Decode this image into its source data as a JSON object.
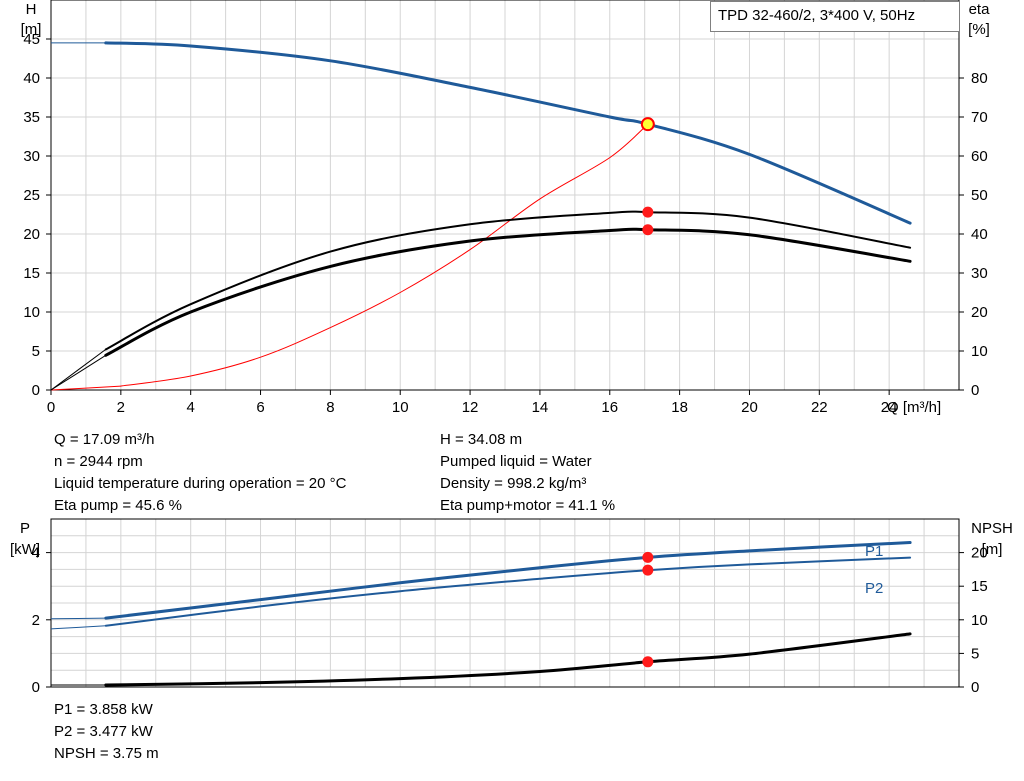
{
  "legend": "TPD 32-460/2, 3*400 V, 50Hz",
  "chart_data": [
    {
      "type": "line",
      "name": "head-efficiency",
      "x_label": "Q [m³/h]",
      "y_left_label": [
        "H",
        "[m]"
      ],
      "y_right_label": [
        "eta",
        "[%]"
      ],
      "x_range": [
        0,
        26
      ],
      "y_left_range": [
        0,
        50
      ],
      "y_right_range": [
        0,
        100
      ],
      "x_ticks": [
        "0",
        "2",
        "4",
        "6",
        "8",
        "10",
        "12",
        "14",
        "16",
        "18",
        "20",
        "22",
        "24"
      ],
      "y_left_ticks": [
        "0",
        "5",
        "10",
        "15",
        "20",
        "25",
        "30",
        "35",
        "40",
        "45"
      ],
      "y_right_ticks": [
        "0",
        "10",
        "20",
        "30",
        "40",
        "50",
        "60",
        "70",
        "80"
      ],
      "grid": true,
      "series": [
        {
          "id": "H",
          "axis": "left",
          "color": "#1f5a99",
          "x": [
            0,
            1.57,
            4,
            8,
            12,
            16,
            17.09,
            20,
            24.6
          ],
          "y": [
            44.5,
            44.5,
            44.1,
            42.2,
            38.8,
            35.0,
            34.08,
            30.2,
            21.4
          ]
        },
        {
          "id": "eta_pump",
          "axis": "right",
          "color": "#000000",
          "x": [
            0,
            1.57,
            4,
            8,
            12,
            16,
            17.09,
            20,
            24.6
          ],
          "y": [
            0,
            10.4,
            22,
            35.5,
            42.5,
            45.4,
            45.6,
            44.2,
            36.5
          ]
        },
        {
          "id": "eta_pump_motor",
          "axis": "right",
          "color": "#000000",
          "x": [
            0,
            1.57,
            4,
            8,
            12,
            16,
            17.09,
            20,
            24.6
          ],
          "y": [
            0,
            8.9,
            20,
            31.7,
            38.2,
            40.9,
            41.1,
            39.8,
            33.0
          ]
        },
        {
          "id": "system_curve",
          "axis": "left",
          "color": "#ff0000",
          "x": [
            0,
            2,
            4,
            6,
            8,
            10,
            12,
            14,
            16,
            17.09
          ],
          "y": [
            0,
            0.5,
            1.8,
            4.2,
            8,
            12.5,
            18,
            24.5,
            29.8,
            34.08
          ]
        }
      ],
      "operating_point": {
        "x": 17.09,
        "H": 34.08,
        "eta_pump": 45.6,
        "eta_pump_motor": 41.1
      }
    },
    {
      "type": "line",
      "name": "power-npsh",
      "y_left_label": [
        "P",
        "[kW]"
      ],
      "y_right_label": [
        "NPSH",
        "[m]"
      ],
      "x_range": [
        0,
        26
      ],
      "y_left_range": [
        0,
        5
      ],
      "y_right_range": [
        0,
        25
      ],
      "y_left_ticks": [
        "0",
        "2",
        "4"
      ],
      "y_right_ticks": [
        "0",
        "5",
        "10",
        "15",
        "20"
      ],
      "grid": true,
      "series": [
        {
          "id": "P1",
          "name": "P1",
          "axis": "left",
          "color": "#1f5a99",
          "x": [
            0,
            1.57,
            6,
            10,
            14,
            17.09,
            20,
            24.6
          ],
          "y": [
            2.03,
            2.05,
            2.6,
            3.1,
            3.55,
            3.858,
            4.05,
            4.3
          ]
        },
        {
          "id": "P2",
          "name": "P2",
          "axis": "left",
          "color": "#1f5a99",
          "x": [
            0,
            1.57,
            6,
            10,
            14,
            17.09,
            20,
            24.6
          ],
          "y": [
            1.73,
            1.82,
            2.4,
            2.85,
            3.22,
            3.477,
            3.65,
            3.85
          ]
        },
        {
          "id": "NPSH",
          "axis": "right",
          "color": "#000000",
          "x": [
            0,
            1.57,
            6,
            10,
            14,
            17.09,
            20,
            24.6
          ],
          "y": [
            0.3,
            0.3,
            0.65,
            1.25,
            2.3,
            3.75,
            4.9,
            7.9
          ]
        }
      ],
      "operating_point": {
        "x": 17.09,
        "P1": 3.858,
        "P2": 3.477,
        "NPSH": 3.75
      }
    }
  ],
  "info": {
    "left": [
      "Q = 17.09 m³/h",
      "n = 2944 rpm",
      "Liquid temperature during operation = 20 °C",
      "Eta pump = 45.6 %"
    ],
    "right": [
      "H = 34.08 m",
      "Pumped liquid = Water",
      "Density = 998.2 kg/m³",
      "Eta pump+motor = 41.1 %"
    ],
    "bottom": [
      "P1 = 3.858 kW",
      "P2 = 3.477 kW",
      "NPSH = 3.75 m"
    ]
  }
}
